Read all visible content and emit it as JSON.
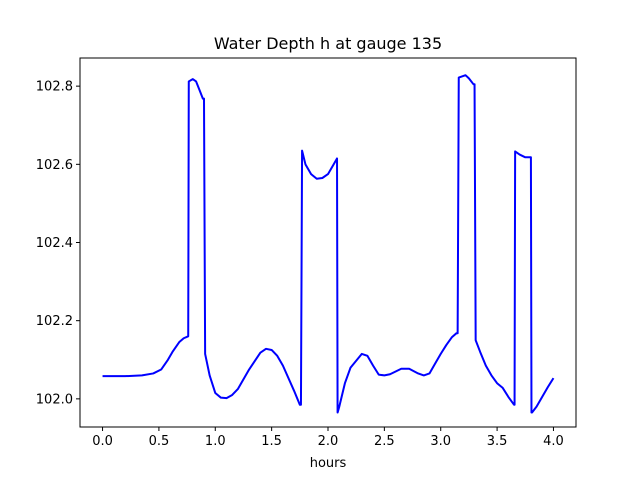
{
  "chart_data": {
    "type": "line",
    "title": "Water Depth h at gauge 135",
    "xlabel": "hours",
    "ylabel": "",
    "xlim": [
      -0.2,
      4.2
    ],
    "ylim": [
      101.928,
      102.872
    ],
    "grid": false,
    "xticks": [
      0.0,
      0.5,
      1.0,
      1.5,
      2.0,
      2.5,
      3.0,
      3.5,
      4.0
    ],
    "xtick_labels": [
      "0.0",
      "0.5",
      "1.0",
      "1.5",
      "2.0",
      "2.5",
      "3.0",
      "3.5",
      "4.0"
    ],
    "yticks": [
      102.0,
      102.2,
      102.4,
      102.6,
      102.8
    ],
    "ytick_labels": [
      "102.0",
      "102.2",
      "102.4",
      "102.6",
      "102.8"
    ],
    "series": [
      {
        "color": "#0000ff",
        "x": [
          0.0,
          0.2,
          0.35,
          0.45,
          0.52,
          0.58,
          0.62,
          0.68,
          0.72,
          0.76,
          0.765,
          0.8,
          0.83,
          0.86,
          0.89,
          0.9,
          0.91,
          0.95,
          1.0,
          1.05,
          1.1,
          1.15,
          1.2,
          1.3,
          1.4,
          1.45,
          1.5,
          1.55,
          1.6,
          1.7,
          1.75,
          1.76,
          1.77,
          1.8,
          1.85,
          1.9,
          1.95,
          2.0,
          2.05,
          2.08,
          2.085,
          2.1,
          2.15,
          2.2,
          2.3,
          2.35,
          2.4,
          2.45,
          2.5,
          2.55,
          2.6,
          2.65,
          2.72,
          2.8,
          2.85,
          2.9,
          2.95,
          3.0,
          3.05,
          3.1,
          3.14,
          3.15,
          3.16,
          3.22,
          3.25,
          3.29,
          3.3,
          3.31,
          3.35,
          3.4,
          3.45,
          3.5,
          3.55,
          3.6,
          3.65,
          3.655,
          3.66,
          3.7,
          3.75,
          3.8,
          3.805,
          3.81,
          3.85,
          3.9,
          3.95,
          4.0
        ],
        "y": [
          102.058,
          102.058,
          102.06,
          102.065,
          102.075,
          102.1,
          102.12,
          102.145,
          102.155,
          102.16,
          102.812,
          102.818,
          102.812,
          102.79,
          102.768,
          102.768,
          102.115,
          102.06,
          102.015,
          102.003,
          102.002,
          102.01,
          102.025,
          102.075,
          102.118,
          102.128,
          102.125,
          102.11,
          102.085,
          102.02,
          101.985,
          101.985,
          102.635,
          102.6,
          102.575,
          102.563,
          102.565,
          102.575,
          102.6,
          102.615,
          101.965,
          101.98,
          102.04,
          102.08,
          102.115,
          102.11,
          102.085,
          102.062,
          102.06,
          102.063,
          102.07,
          102.077,
          102.077,
          102.065,
          102.06,
          102.065,
          102.09,
          102.115,
          102.138,
          102.158,
          102.168,
          102.168,
          102.822,
          102.828,
          102.82,
          102.805,
          102.805,
          102.15,
          102.12,
          102.085,
          102.06,
          102.04,
          102.028,
          102.005,
          101.985,
          101.985,
          102.633,
          102.625,
          102.618,
          102.618,
          101.965,
          101.965,
          101.98,
          102.005,
          102.03,
          102.053
        ]
      }
    ]
  }
}
